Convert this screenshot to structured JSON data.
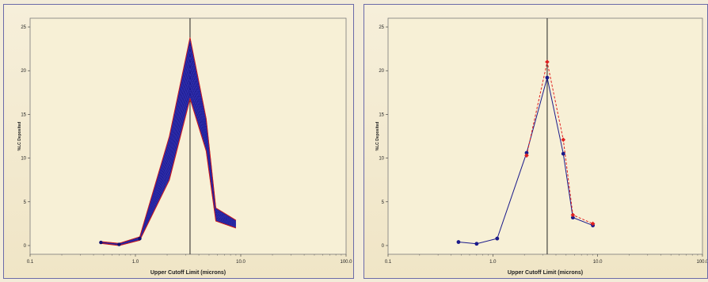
{
  "chart_data": [
    {
      "type": "line",
      "xscale": "log",
      "xlim": [
        0.1,
        100.0
      ],
      "ylim": [
        -1,
        26
      ],
      "x_ticks": [
        "0.1",
        "1.0",
        "10.0",
        "100.0"
      ],
      "y_ticks": [
        "0",
        "5",
        "10",
        "15",
        "20",
        "25"
      ],
      "xlabel": "Upper Cutoff Limit (microns)",
      "ylabel": "%LC Deposited",
      "grid": false,
      "reference_line_x": 3.3,
      "x": [
        0.47,
        0.7,
        1.1,
        2.1,
        3.3,
        4.7,
        5.8,
        9.0
      ],
      "band": {
        "lower": [
          0.25,
          0.0,
          0.6,
          7.5,
          16.8,
          10.8,
          2.8,
          2.0
        ],
        "upper": [
          0.45,
          0.25,
          1.0,
          12.5,
          23.8,
          14.5,
          4.3,
          2.9
        ]
      },
      "colors": {
        "band": "#1a1a9a",
        "outer": "#d01818",
        "reference": "#222222"
      }
    },
    {
      "type": "line",
      "xscale": "log",
      "xlim": [
        0.1,
        100.0
      ],
      "ylim": [
        -1,
        26
      ],
      "x_ticks": [
        "0.1",
        "1.0",
        "10.0",
        "100.0"
      ],
      "y_ticks": [
        "0",
        "5",
        "10",
        "15",
        "20",
        "25"
      ],
      "xlabel": "Upper Cutoff Limit (microns)",
      "ylabel": "%LC Deposited",
      "grid": false,
      "reference_line_x": 3.3,
      "series": [
        {
          "color": "#1a1a8a",
          "style": "solid",
          "x": [
            0.47,
            0.7,
            1.1,
            2.1,
            3.3,
            4.7,
            5.8,
            9.0
          ],
          "y": [
            0.4,
            0.2,
            0.8,
            10.6,
            19.2,
            10.5,
            3.2,
            2.3
          ]
        },
        {
          "color": "#e02020",
          "style": "dashed",
          "x": [
            2.1,
            3.3,
            4.7,
            5.8,
            9.0
          ],
          "y": [
            10.3,
            21.0,
            12.1,
            3.5,
            2.5
          ]
        }
      ]
    }
  ]
}
